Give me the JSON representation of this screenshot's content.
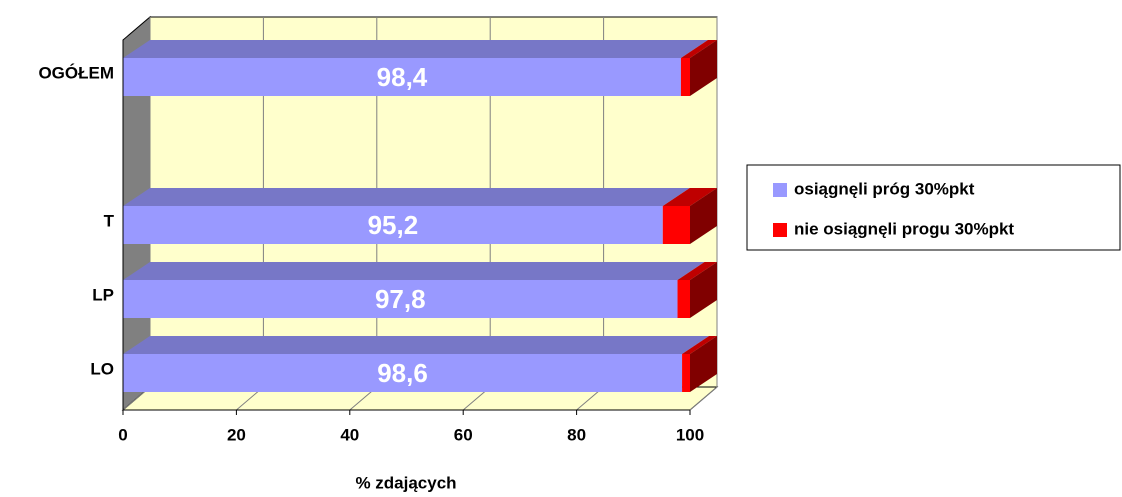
{
  "chart_data": {
    "type": "stacked-bar-3d-horizontal",
    "x_label": "% zdających",
    "categories": [
      "LO",
      "LP",
      "T",
      null,
      "OGÓŁEM"
    ],
    "series": [
      {
        "name": "osiągnęli próg 30%pkt",
        "color": "#9999ff",
        "values": [
          98.6,
          97.8,
          95.2,
          null,
          98.4
        ],
        "value_labels": [
          "98,6",
          "97,8",
          "95,2",
          null,
          "98,4"
        ]
      },
      {
        "name": "nie osiągnęli progu 30%pkt",
        "color": "#ff0000",
        "values": [
          1.4,
          2.2,
          4.8,
          null,
          1.6
        ]
      }
    ],
    "xlim": [
      0,
      100
    ],
    "xticks": [
      0,
      20,
      40,
      60,
      80,
      100
    ],
    "grid": true
  }
}
